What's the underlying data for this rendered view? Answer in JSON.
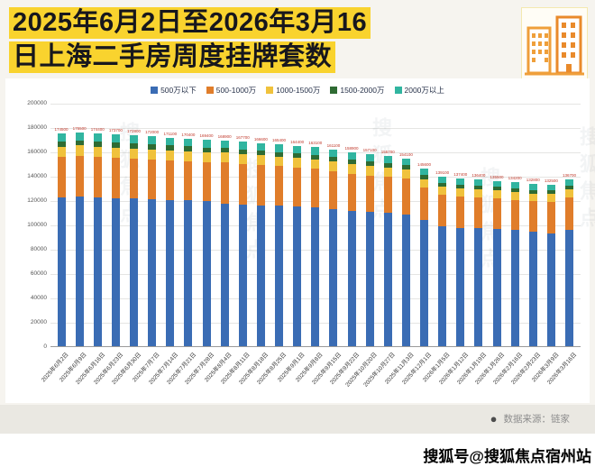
{
  "title": {
    "line1": "2025年6月2日至2026年3月16",
    "line2": "日上海二手房周度挂牌套数"
  },
  "footer": {
    "bullet": "●",
    "source": "数据来源：链家"
  },
  "page": {
    "bottom_watermark": "搜狐号@搜狐焦点宿州站",
    "faint_watermark": "搜狐焦点"
  },
  "icons": {
    "building_icon": "building-icon"
  },
  "chart_data": {
    "type": "bar",
    "stacked": true,
    "title": "2025年6月2日至2026年3月16日上海二手房周度挂牌套数",
    "ylim": [
      0,
      200000
    ],
    "yticks": [
      0,
      20000,
      40000,
      60000,
      80000,
      100000,
      120000,
      140000,
      160000,
      180000,
      200000
    ],
    "grid": true,
    "legend_position": "top",
    "categories": [
      "2025年6月2日",
      "2025年6月9日",
      "2025年6月16日",
      "2025年6月23日",
      "2025年6月30日",
      "2025年7月7日",
      "2025年7月14日",
      "2025年7月21日",
      "2025年7月28日",
      "2025年8月4日",
      "2025年8月11日",
      "2025年8月18日",
      "2025年8月25日",
      "2025年9月1日",
      "2025年9月8日",
      "2025年9月15日",
      "2025年9月22日",
      "2025年10月20日",
      "2025年10月27日",
      "2025年11月3日",
      "2025年12月1日",
      "2026年1月5日",
      "2026年1月12日",
      "2026年1月19日",
      "2026年1月26日",
      "2026年2月16日",
      "2026年2月23日",
      "2026年3月9日",
      "2026年3月16日"
    ],
    "series": [
      {
        "name": "500万以下",
        "color": "#3a6cb4",
        "values": [
          122000,
          122500,
          122000,
          121500,
          121000,
          120500,
          120000,
          119500,
          119000,
          116500,
          116000,
          115500,
          115000,
          114500,
          114000,
          112500,
          111000,
          110000,
          109000,
          108000,
          103000,
          98000,
          97000,
          96500,
          96000,
          95000,
          94000,
          92000,
          95500
        ]
      },
      {
        "name": "500-1000万",
        "color": "#e07d2a",
        "values": [
          33000,
          33500,
          33200,
          33000,
          32800,
          32600,
          32400,
          32200,
          32000,
          34000,
          33500,
          33000,
          32500,
          32000,
          31500,
          31000,
          30500,
          30000,
          29800,
          29500,
          27000,
          26000,
          25500,
          25200,
          25000,
          24800,
          24600,
          26000,
          26500
        ]
      },
      {
        "name": "1000-1500万",
        "color": "#f0c23c",
        "values": [
          8500,
          8500,
          8400,
          8400,
          8300,
          8300,
          8200,
          8200,
          8100,
          8100,
          8000,
          8000,
          7900,
          7900,
          7800,
          7800,
          7700,
          7600,
          7500,
          7400,
          7000,
          6800,
          6700,
          6600,
          6500,
          6500,
          6400,
          6500,
          6600
        ]
      },
      {
        "name": "1500-2000万",
        "color": "#2f6b33",
        "values": [
          4200,
          4200,
          4100,
          4100,
          4100,
          4000,
          4000,
          4000,
          3900,
          3900,
          3900,
          3800,
          3800,
          3800,
          3700,
          3700,
          3700,
          3600,
          3600,
          3500,
          3300,
          3200,
          3200,
          3100,
          3100,
          3000,
          3000,
          3100,
          3100
        ]
      },
      {
        "name": "2000万以上",
        "color": "#31b5a0",
        "values": [
          6800,
          6800,
          6700,
          6700,
          6600,
          6600,
          6500,
          6500,
          6400,
          6400,
          6300,
          6300,
          6200,
          6200,
          6100,
          6100,
          6000,
          5900,
          5800,
          5700,
          5300,
          5100,
          5000,
          5000,
          4900,
          4900,
          4800,
          4900,
          5000
        ]
      }
    ]
  }
}
